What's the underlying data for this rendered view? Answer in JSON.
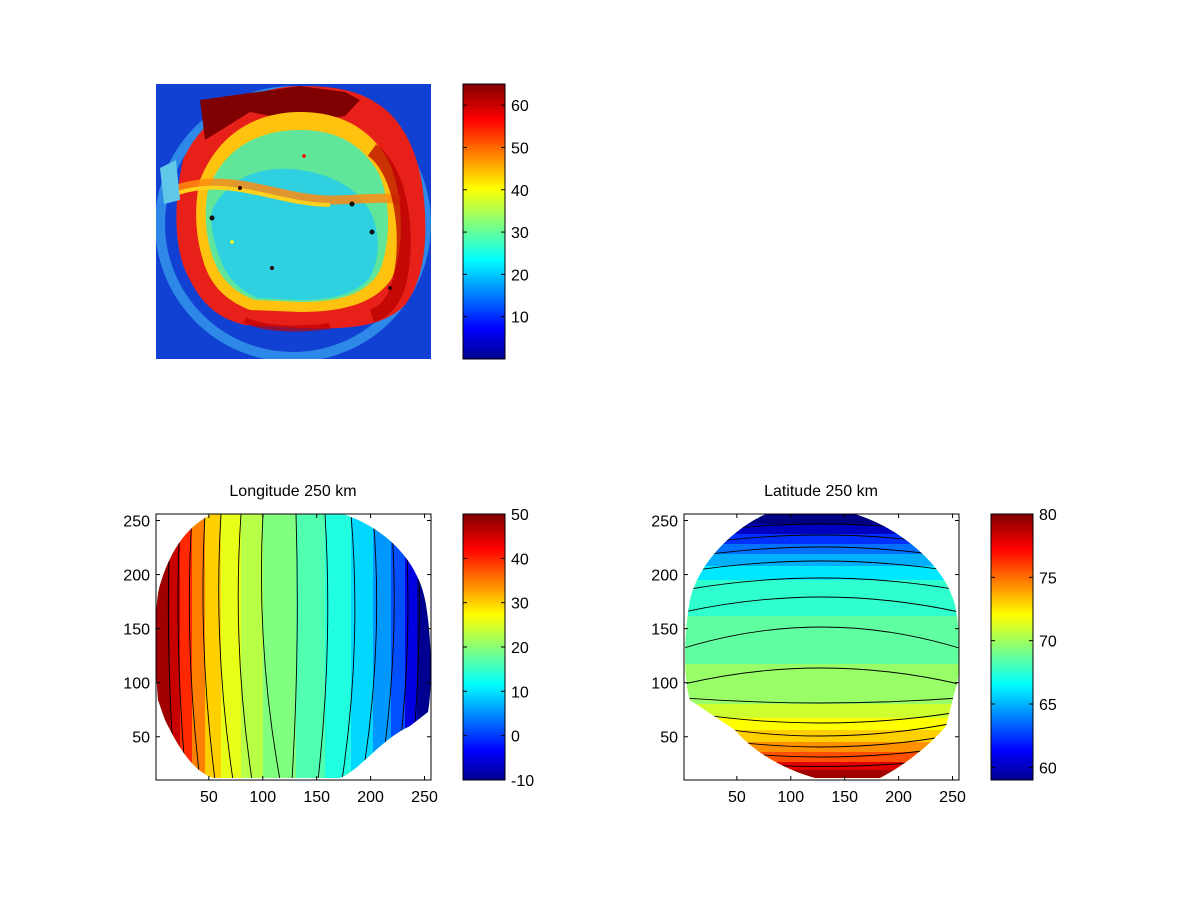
{
  "chart_data": [
    {
      "type": "heatmap",
      "title": "",
      "xlabel": "",
      "ylabel": "",
      "axes_visible": false,
      "colormap": "jet",
      "colorbar": {
        "min": 0,
        "max": 65,
        "ticks": [
          10,
          20,
          30,
          40,
          50,
          60
        ]
      },
      "description_values": {
        "background": 5,
        "disk_interior": 28,
        "limb_ring": 60,
        "band": 45
      }
    },
    {
      "type": "heatmap",
      "title": "Longitude 250 km",
      "xlabel": "",
      "ylabel": "",
      "contours": true,
      "colormap": "jet",
      "xlim": [
        1,
        256
      ],
      "ylim": [
        10,
        256
      ],
      "xticks": [
        50,
        100,
        150,
        200,
        250
      ],
      "yticks": [
        50,
        100,
        150,
        200,
        250
      ],
      "colorbar": {
        "min": -10,
        "max": 50,
        "ticks": [
          -10,
          0,
          10,
          20,
          30,
          40,
          50
        ]
      },
      "field": {
        "left_edge": 50,
        "center": 20,
        "right_edge": -10,
        "contour_levels": [
          -5,
          0,
          5,
          10,
          15,
          20,
          25,
          30,
          35,
          40,
          45
        ]
      }
    },
    {
      "type": "heatmap",
      "title": "Latitude 250 km",
      "xlabel": "",
      "ylabel": "",
      "contours": true,
      "colormap": "jet",
      "xlim": [
        1,
        256
      ],
      "ylim": [
        10,
        256
      ],
      "xticks": [
        50,
        100,
        150,
        200,
        250
      ],
      "yticks": [
        50,
        100,
        150,
        200,
        250
      ],
      "colorbar": {
        "min": 59,
        "max": 80,
        "ticks": [
          60,
          65,
          70,
          75,
          80
        ]
      },
      "field": {
        "top": 59,
        "middle": 70,
        "bottom": 80,
        "contour_levels": [
          60,
          61,
          62,
          63,
          64,
          65,
          66,
          67,
          68,
          69,
          70,
          71,
          72,
          73,
          74,
          75,
          76,
          77,
          78,
          79
        ]
      }
    }
  ]
}
